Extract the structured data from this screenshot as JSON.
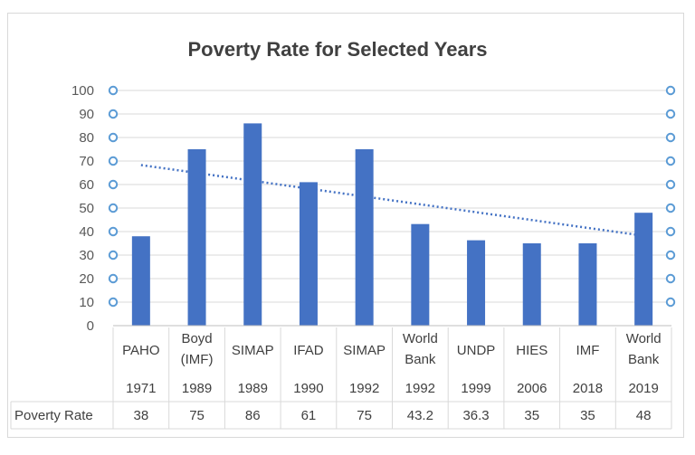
{
  "chart_data": {
    "type": "bar",
    "title": "Poverty Rate for Selected Years",
    "ylim": [
      0,
      100
    ],
    "yticks": [
      0,
      10,
      20,
      30,
      40,
      50,
      60,
      70,
      80,
      90,
      100
    ],
    "grid": true,
    "trendline": "linear",
    "categories": [
      {
        "source": [
          "PAHO"
        ],
        "year": "1971"
      },
      {
        "source": [
          "Boyd",
          "(IMF)"
        ],
        "year": "1989"
      },
      {
        "source": [
          "SIMAP"
        ],
        "year": "1989"
      },
      {
        "source": [
          "IFAD"
        ],
        "year": "1990"
      },
      {
        "source": [
          "SIMAP"
        ],
        "year": "1992"
      },
      {
        "source": [
          "World",
          "Bank"
        ],
        "year": "1992"
      },
      {
        "source": [
          "UNDP"
        ],
        "year": "1999"
      },
      {
        "source": [
          "HIES"
        ],
        "year": "2006"
      },
      {
        "source": [
          "IMF"
        ],
        "year": "2018"
      },
      {
        "source": [
          "World",
          "Bank"
        ],
        "year": "2019"
      }
    ],
    "series": [
      {
        "name": "Poverty Rate",
        "values": [
          38,
          75,
          86,
          61,
          75,
          43.2,
          36.3,
          35,
          35,
          48
        ],
        "color": "#4472c4"
      }
    ],
    "table_labels": [
      "38",
      "75",
      "86",
      "61",
      "75",
      "43.2",
      "36.3",
      "35",
      "35",
      "48"
    ],
    "trend_color": "#4472c4",
    "handle_color": "#5b9bd5"
  }
}
